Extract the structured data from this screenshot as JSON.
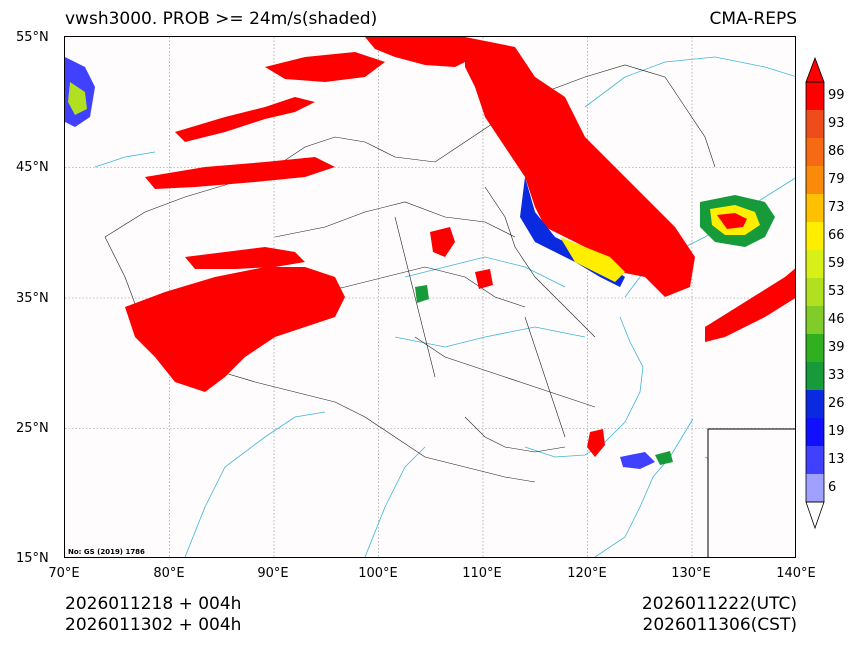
{
  "header": {
    "title_left": "vwsh3000. PROB >= 24m/s(shaded)",
    "title_right": "CMA-REPS"
  },
  "axes": {
    "lat_labels": [
      "55°N",
      "45°N",
      "35°N",
      "25°N",
      "15°N"
    ],
    "lon_labels": [
      "70°E",
      "80°E",
      "90°E",
      "100°E",
      "110°E",
      "120°E",
      "130°E",
      "140°E"
    ],
    "lat_range": [
      15,
      55
    ],
    "lon_range": [
      70,
      140
    ]
  },
  "colorbar": {
    "labels": [
      "99",
      "93",
      "86",
      "79",
      "73",
      "66",
      "59",
      "53",
      "46",
      "39",
      "33",
      "26",
      "19",
      "13",
      "6"
    ],
    "colors_top_to_bottom": [
      "#ff0000",
      "#ee4c1a",
      "#f66a13",
      "#fa8a0a",
      "#ffc000",
      "#ffee00",
      "#d8f018",
      "#b0e020",
      "#80cc28",
      "#30b020",
      "#169a3a",
      "#0a2ae0",
      "#1010ff",
      "#4040ff",
      "#a0a0ff"
    ]
  },
  "footer": {
    "init_utc": "2026011218  +  004h",
    "init_cst": "2026011302  +  004h",
    "valid_utc": "2026011222(UTC)",
    "valid_cst": "2026011306(CST)"
  },
  "map_note": "No: GS (2019) 1786"
}
